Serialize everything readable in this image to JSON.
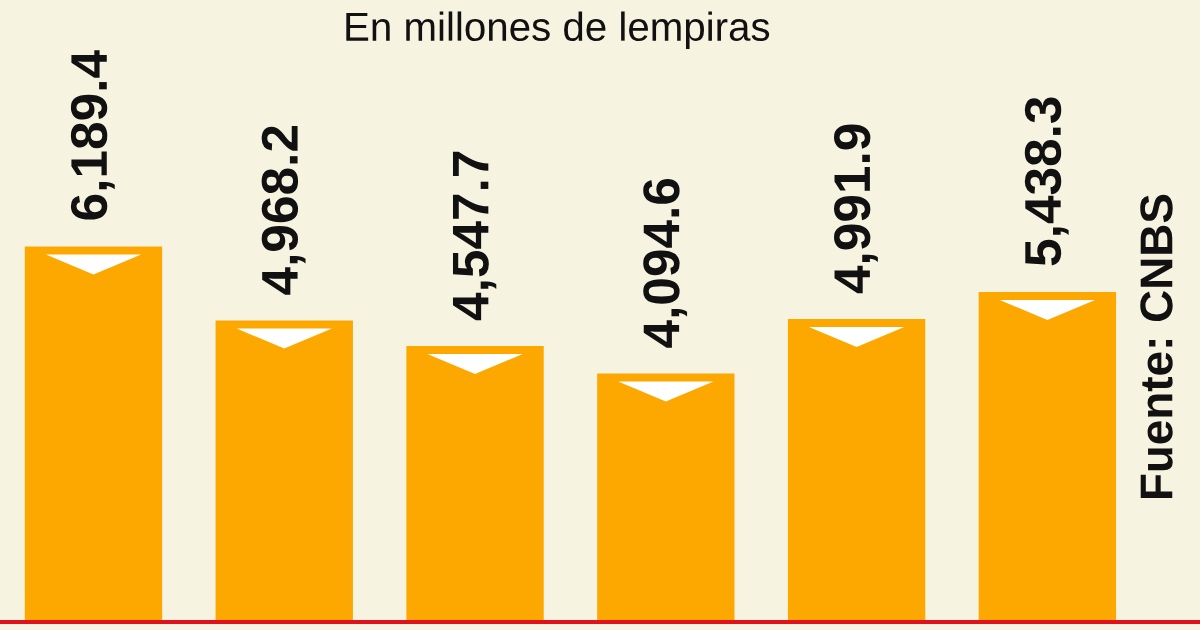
{
  "chart_data": {
    "type": "bar",
    "subtitle": "En millones de lempiras",
    "categories": [
      null,
      null,
      null,
      null,
      null,
      null
    ],
    "values": [
      6189.4,
      4968.2,
      4547.7,
      4094.6,
      4991.9,
      5438.3
    ],
    "value_labels": [
      "6,189.4",
      "4,968.2",
      "4,547.7",
      "4,094.6",
      "4,991.9",
      "5,438.3"
    ],
    "color": "#fca800",
    "ylim": [
      0,
      10250
    ],
    "annotations": [
      "Fuente: CNBS"
    ]
  }
}
